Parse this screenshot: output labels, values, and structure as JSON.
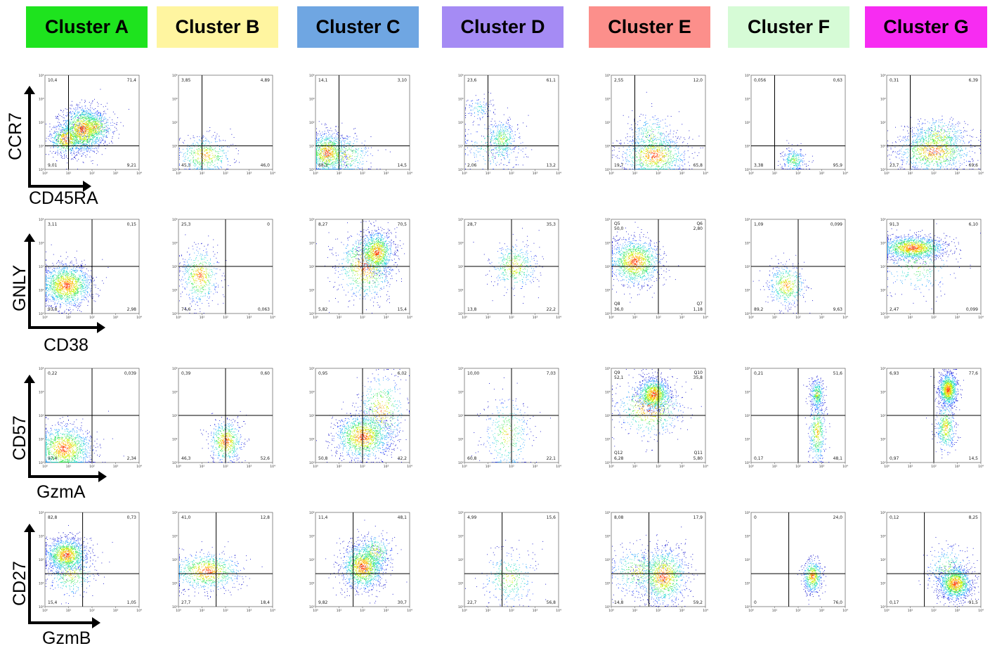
{
  "clusters": [
    {
      "name": "Cluster A",
      "color": "#1ee31e"
    },
    {
      "name": "Cluster B",
      "color": "#fff5a0"
    },
    {
      "name": "Cluster C",
      "color": "#6fa6e2"
    },
    {
      "name": "Cluster D",
      "color": "#a58bf4"
    },
    {
      "name": "Cluster E",
      "color": "#fc8f8b"
    },
    {
      "name": "Cluster F",
      "color": "#d6fbd6"
    },
    {
      "name": "Cluster G",
      "color": "#f72cf2"
    }
  ],
  "markers": [
    {
      "x": "CD45RA",
      "y": "CCR7"
    },
    {
      "x": "CD38",
      "y": "GNLY"
    },
    {
      "x": "GzmA",
      "y": "CD57"
    },
    {
      "x": "GzmB",
      "y": "CD27"
    }
  ],
  "axis_ticks": [
    "10⁰",
    "10¹",
    "10²",
    "10³",
    "10⁴"
  ],
  "chart_data": {
    "type": "scatter",
    "description_axes": "log scale 10^0 to 10^4 on both axes, quadrant gates",
    "xlim": [
      0,
      4
    ],
    "ylim": [
      0,
      4
    ],
    "plots": [
      {
        "row": 0,
        "col": 0,
        "xgate": 1.0,
        "ygate": 1.0,
        "q": [
          "10,4",
          "71,4",
          "9,21",
          "9,01"
        ],
        "pop": [
          {
            "x": 1.6,
            "y": 1.7,
            "sx": 0.45,
            "sy": 0.5,
            "n": 1400
          },
          {
            "x": 0.9,
            "y": 1.3,
            "sx": 0.35,
            "sy": 0.35,
            "n": 600
          },
          {
            "x": 2.1,
            "y": 1.8,
            "sx": 0.4,
            "sy": 0.35,
            "n": 500
          }
        ]
      },
      {
        "row": 0,
        "col": 1,
        "xgate": 1.0,
        "ygate": 1.0,
        "q": [
          "3,85",
          "4,89",
          "46,0",
          "45,3"
        ],
        "pop": [
          {
            "x": 1.1,
            "y": 0.6,
            "sx": 0.6,
            "sy": 0.4,
            "n": 500
          }
        ]
      },
      {
        "row": 0,
        "col": 2,
        "xgate": 1.0,
        "ygate": 1.0,
        "q": [
          "14,1",
          "3,10",
          "14,5",
          "68,3"
        ],
        "pop": [
          {
            "x": 0.5,
            "y": 0.7,
            "sx": 0.4,
            "sy": 0.45,
            "n": 900
          },
          {
            "x": 1.2,
            "y": 0.6,
            "sx": 0.6,
            "sy": 0.45,
            "n": 400
          }
        ]
      },
      {
        "row": 0,
        "col": 3,
        "xgate": 1.0,
        "ygate": 1.0,
        "q": [
          "23,6",
          "61,1",
          "13,2",
          "2,06"
        ],
        "pop": [
          {
            "x": 1.6,
            "y": 1.3,
            "sx": 0.3,
            "sy": 0.4,
            "n": 350
          },
          {
            "x": 0.6,
            "y": 2.6,
            "sx": 0.3,
            "sy": 0.25,
            "n": 120
          },
          {
            "x": 1.3,
            "y": 1.0,
            "sx": 0.7,
            "sy": 0.6,
            "n": 250
          }
        ]
      },
      {
        "row": 0,
        "col": 4,
        "xgate": 1.0,
        "ygate": 1.0,
        "q": [
          "2,55",
          "12,0",
          "65,8",
          "19,7"
        ],
        "pop": [
          {
            "x": 1.8,
            "y": 0.6,
            "sx": 0.7,
            "sy": 0.45,
            "n": 900
          },
          {
            "x": 1.7,
            "y": 1.4,
            "sx": 0.5,
            "sy": 0.5,
            "n": 300
          }
        ]
      },
      {
        "row": 0,
        "col": 5,
        "xgate": 1.0,
        "ygate": 1.0,
        "q": [
          "0,056",
          "0,63",
          "95,9",
          "3,38"
        ],
        "pop": [
          {
            "x": 1.8,
            "y": 0.4,
            "sx": 0.25,
            "sy": 0.25,
            "n": 300
          }
        ]
      },
      {
        "row": 0,
        "col": 6,
        "xgate": 1.0,
        "ygate": 1.0,
        "q": [
          "0,31",
          "6,39",
          "69,6",
          "23,7"
        ],
        "pop": [
          {
            "x": 2.0,
            "y": 0.8,
            "sx": 0.8,
            "sy": 0.45,
            "n": 1000
          },
          {
            "x": 2.2,
            "y": 1.4,
            "sx": 0.6,
            "sy": 0.4,
            "n": 400
          }
        ]
      },
      {
        "row": 1,
        "col": 0,
        "xgate": 2.0,
        "ygate": 2.0,
        "q": [
          "3,11",
          "0,15",
          "2,98",
          "93,8"
        ],
        "pop": [
          {
            "x": 0.9,
            "y": 1.2,
            "sx": 0.55,
            "sy": 0.45,
            "n": 1500
          }
        ]
      },
      {
        "row": 1,
        "col": 1,
        "xgate": 2.0,
        "ygate": 2.0,
        "q": [
          "25,3",
          "0",
          "0,063",
          "74,6"
        ],
        "pop": [
          {
            "x": 0.9,
            "y": 1.6,
            "sx": 0.4,
            "sy": 0.6,
            "n": 550
          }
        ]
      },
      {
        "row": 1,
        "col": 2,
        "xgate": 2.0,
        "ygate": 2.0,
        "q": [
          "8,27",
          "70,5",
          "15,4",
          "5,82"
        ],
        "pop": [
          {
            "x": 2.6,
            "y": 2.6,
            "sx": 0.35,
            "sy": 0.45,
            "n": 1000
          },
          {
            "x": 2.1,
            "y": 2.0,
            "sx": 0.6,
            "sy": 0.7,
            "n": 800
          }
        ]
      },
      {
        "row": 1,
        "col": 3,
        "xgate": 2.0,
        "ygate": 2.0,
        "q": [
          "28,7",
          "35,3",
          "22,2",
          "13,8"
        ],
        "pop": [
          {
            "x": 2.1,
            "y": 2.0,
            "sx": 0.5,
            "sy": 0.5,
            "n": 450
          }
        ]
      },
      {
        "row": 1,
        "col": 4,
        "xgate": 2.0,
        "ygate": 2.0,
        "q": [
          "50,0",
          "2,80",
          "1,18",
          "36,0"
        ],
        "pop": [
          {
            "x": 1.0,
            "y": 2.2,
            "sx": 0.55,
            "sy": 0.5,
            "n": 1300
          }
        ],
        "qlabels": [
          "Q5",
          "Q6",
          "Q7",
          "Q8"
        ]
      },
      {
        "row": 1,
        "col": 5,
        "xgate": 2.0,
        "ygate": 2.0,
        "q": [
          "1,09",
          "0,099",
          "9,63",
          "89,2"
        ],
        "pop": [
          {
            "x": 1.5,
            "y": 1.2,
            "sx": 0.4,
            "sy": 0.45,
            "n": 500
          }
        ]
      },
      {
        "row": 1,
        "col": 6,
        "xgate": 2.0,
        "ygate": 2.0,
        "q": [
          "91,3",
          "6,10",
          "0,099",
          "2,47"
        ],
        "pop": [
          {
            "x": 1.1,
            "y": 2.8,
            "sx": 0.7,
            "sy": 0.25,
            "n": 1400
          },
          {
            "x": 1.3,
            "y": 2.0,
            "sx": 0.8,
            "sy": 0.6,
            "n": 300
          }
        ]
      },
      {
        "row": 2,
        "col": 0,
        "xgate": 2.0,
        "ygate": 2.0,
        "q": [
          "0,22",
          "0,039",
          "2,34",
          "97,4"
        ],
        "pop": [
          {
            "x": 0.8,
            "y": 0.6,
            "sx": 0.6,
            "sy": 0.5,
            "n": 1300
          }
        ]
      },
      {
        "row": 2,
        "col": 1,
        "xgate": 2.0,
        "ygate": 2.0,
        "q": [
          "0,39",
          "0,60",
          "52,6",
          "46,3"
        ],
        "pop": [
          {
            "x": 2.0,
            "y": 0.9,
            "sx": 0.35,
            "sy": 0.45,
            "n": 600
          }
        ]
      },
      {
        "row": 2,
        "col": 2,
        "xgate": 2.0,
        "ygate": 2.0,
        "q": [
          "0,95",
          "6,02",
          "42,2",
          "50,8"
        ],
        "pop": [
          {
            "x": 2.0,
            "y": 1.1,
            "sx": 0.6,
            "sy": 0.5,
            "n": 1300
          },
          {
            "x": 2.8,
            "y": 2.2,
            "sx": 0.5,
            "sy": 0.8,
            "n": 500
          }
        ]
      },
      {
        "row": 2,
        "col": 3,
        "xgate": 2.0,
        "ygate": 2.0,
        "q": [
          "10,00",
          "7,03",
          "22,1",
          "60,8"
        ],
        "pop": [
          {
            "x": 1.8,
            "y": 1.2,
            "sx": 0.5,
            "sy": 0.8,
            "n": 400
          }
        ]
      },
      {
        "row": 2,
        "col": 4,
        "xgate": 2.0,
        "ygate": 2.0,
        "q": [
          "52,1",
          "35,8",
          "5,80",
          "6,28"
        ],
        "pop": [
          {
            "x": 1.8,
            "y": 2.9,
            "sx": 0.35,
            "sy": 0.35,
            "n": 1100
          },
          {
            "x": 1.6,
            "y": 2.3,
            "sx": 0.7,
            "sy": 0.6,
            "n": 600
          }
        ],
        "qlabels": [
          "Q9",
          "Q10",
          "Q11",
          "Q12"
        ]
      },
      {
        "row": 2,
        "col": 5,
        "xgate": 2.0,
        "ygate": 2.0,
        "q": [
          "0,21",
          "51,6",
          "48,1",
          "0,17"
        ],
        "pop": [
          {
            "x": 2.8,
            "y": 2.9,
            "sx": 0.15,
            "sy": 0.35,
            "n": 350
          },
          {
            "x": 2.8,
            "y": 1.3,
            "sx": 0.18,
            "sy": 0.7,
            "n": 450
          }
        ]
      },
      {
        "row": 2,
        "col": 6,
        "xgate": 2.0,
        "ygate": 2.0,
        "q": [
          "6,93",
          "77,6",
          "14,5",
          "0,97"
        ],
        "pop": [
          {
            "x": 2.6,
            "y": 3.1,
            "sx": 0.2,
            "sy": 0.35,
            "n": 1000
          },
          {
            "x": 2.5,
            "y": 1.5,
            "sx": 0.2,
            "sy": 0.55,
            "n": 450
          }
        ]
      },
      {
        "row": 3,
        "col": 0,
        "xgate": 1.6,
        "ygate": 1.4,
        "q": [
          "82,8",
          "0,73",
          "1,05",
          "15,4"
        ],
        "pop": [
          {
            "x": 0.9,
            "y": 2.2,
            "sx": 0.45,
            "sy": 0.35,
            "n": 1200
          },
          {
            "x": 1.1,
            "y": 1.4,
            "sx": 0.5,
            "sy": 0.5,
            "n": 400
          }
        ]
      },
      {
        "row": 3,
        "col": 1,
        "xgate": 1.6,
        "ygate": 1.4,
        "q": [
          "41,0",
          "12,8",
          "18,4",
          "27,7"
        ],
        "pop": [
          {
            "x": 1.2,
            "y": 1.5,
            "sx": 0.75,
            "sy": 0.4,
            "n": 900
          }
        ]
      },
      {
        "row": 3,
        "col": 2,
        "xgate": 1.6,
        "ygate": 1.4,
        "q": [
          "11,4",
          "48,1",
          "30,7",
          "9,82"
        ],
        "pop": [
          {
            "x": 2.0,
            "y": 1.7,
            "sx": 0.45,
            "sy": 0.5,
            "n": 1300
          },
          {
            "x": 2.5,
            "y": 2.3,
            "sx": 0.4,
            "sy": 0.4,
            "n": 400
          }
        ]
      },
      {
        "row": 3,
        "col": 3,
        "xgate": 1.6,
        "ygate": 1.4,
        "q": [
          "4,99",
          "15,6",
          "56,8",
          "22,7"
        ],
        "pop": [
          {
            "x": 1.9,
            "y": 1.2,
            "sx": 0.6,
            "sy": 0.6,
            "n": 350
          }
        ]
      },
      {
        "row": 3,
        "col": 4,
        "xgate": 1.6,
        "ygate": 1.4,
        "q": [
          "8,08",
          "17,9",
          "59,2",
          "14,8"
        ],
        "pop": [
          {
            "x": 2.2,
            "y": 1.3,
            "sx": 0.5,
            "sy": 0.6,
            "n": 1100
          },
          {
            "x": 1.1,
            "y": 1.5,
            "sx": 0.6,
            "sy": 0.5,
            "n": 400
          }
        ]
      },
      {
        "row": 3,
        "col": 5,
        "xgate": 1.6,
        "ygate": 1.4,
        "q": [
          "0",
          "24,0",
          "76,0",
          "0"
        ],
        "pop": [
          {
            "x": 2.6,
            "y": 1.3,
            "sx": 0.2,
            "sy": 0.35,
            "n": 550
          }
        ]
      },
      {
        "row": 3,
        "col": 6,
        "xgate": 1.6,
        "ygate": 1.4,
        "q": [
          "0,12",
          "8,25",
          "91,5",
          "0,17"
        ],
        "pop": [
          {
            "x": 2.9,
            "y": 1.0,
            "sx": 0.35,
            "sy": 0.35,
            "n": 1200
          },
          {
            "x": 2.6,
            "y": 1.6,
            "sx": 0.5,
            "sy": 0.5,
            "n": 300
          }
        ]
      }
    ]
  }
}
